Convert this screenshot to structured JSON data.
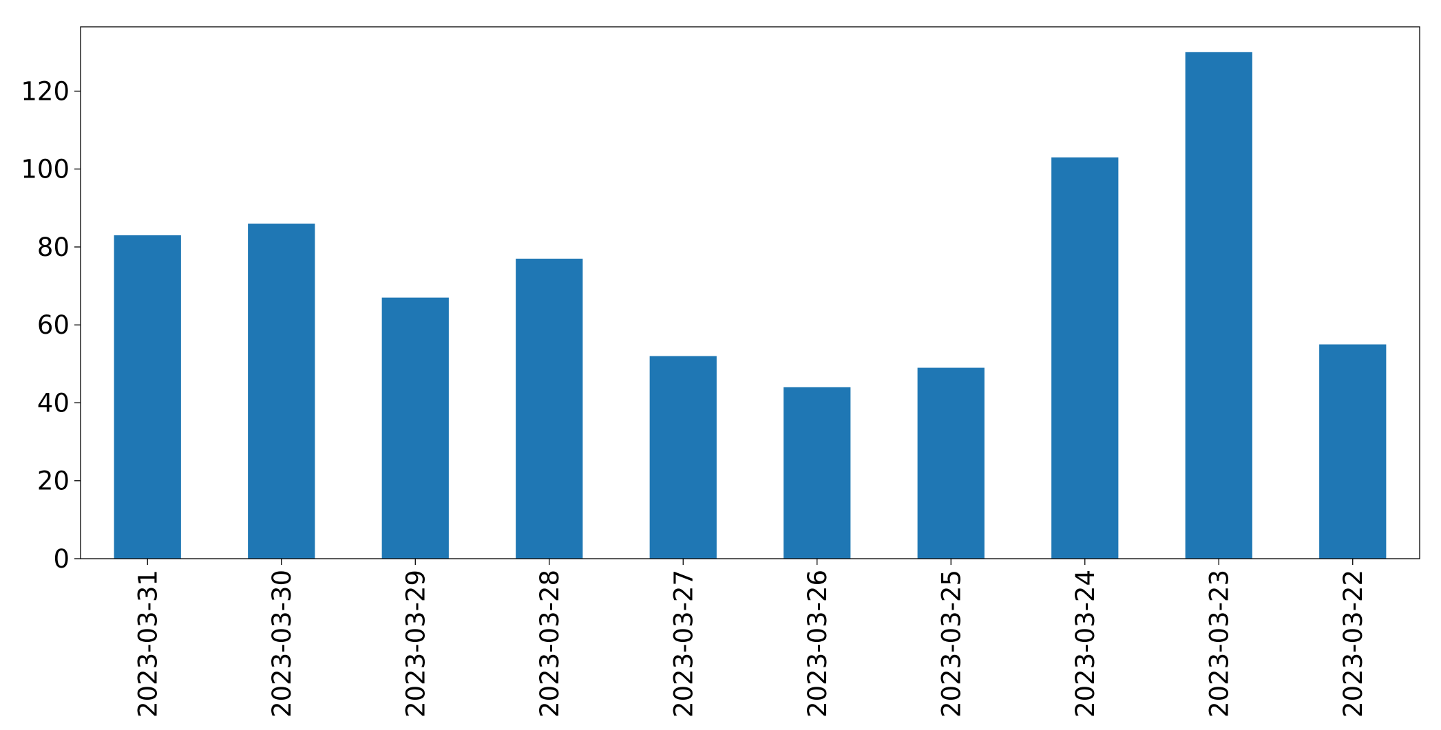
{
  "chart_data": {
    "type": "bar",
    "title": "",
    "xlabel": "",
    "ylabel": "",
    "categories": [
      "2023-03-31",
      "2023-03-30",
      "2023-03-29",
      "2023-03-28",
      "2023-03-27",
      "2023-03-26",
      "2023-03-25",
      "2023-03-24",
      "2023-03-23",
      "2023-03-22"
    ],
    "values": [
      83,
      86,
      67,
      77,
      52,
      44,
      49,
      103,
      130,
      55
    ],
    "ylim": [
      0,
      136.5
    ],
    "yticks": [
      0,
      20,
      40,
      60,
      80,
      100,
      120
    ],
    "ytick_labels": [
      "0",
      "20",
      "40",
      "60",
      "80",
      "100",
      "120"
    ],
    "bar_color": "#1f77b4",
    "grid": false,
    "legend": "none"
  }
}
